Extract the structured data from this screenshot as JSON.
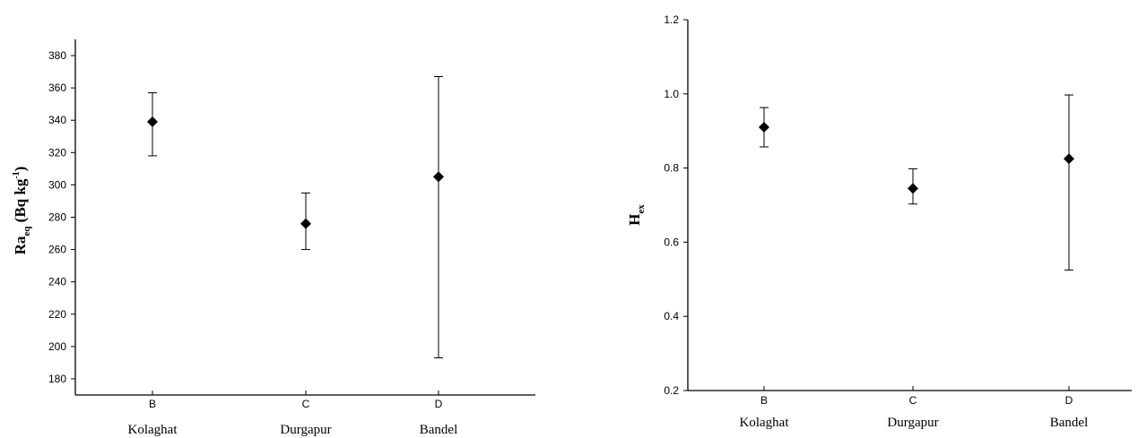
{
  "chart_data": [
    {
      "type": "scatter",
      "ylabel": {
        "main": "Ra",
        "sub": "eq",
        "unit_open": " (Bq kg",
        "sup": "-1",
        "unit_close": ")"
      },
      "ylim": [
        170,
        390
      ],
      "yticks": [
        180,
        200,
        220,
        240,
        260,
        280,
        300,
        320,
        340,
        360,
        380
      ],
      "tick_decimals": 0,
      "categories": [
        {
          "code": "B",
          "name": "Kolaghat"
        },
        {
          "code": "C",
          "name": "Durgapur"
        },
        {
          "code": "D",
          "name": "Bandel"
        }
      ],
      "values": [
        339,
        276,
        305
      ],
      "err_low": [
        318,
        260,
        193
      ],
      "err_high": [
        357,
        295,
        367
      ],
      "marker": "diamond",
      "grid": false
    },
    {
      "type": "scatter",
      "ylabel": {
        "main": "H",
        "sub": "ex",
        "unit_open": "",
        "sup": "",
        "unit_close": ""
      },
      "ylim": [
        0.2,
        1.2
      ],
      "yticks": [
        0.2,
        0.4,
        0.6,
        0.8,
        1.0,
        1.2
      ],
      "tick_decimals": 1,
      "categories": [
        {
          "code": "B",
          "name": "Kolaghat"
        },
        {
          "code": "C",
          "name": "Durgapur"
        },
        {
          "code": "D",
          "name": "Bandel"
        }
      ],
      "values": [
        0.91,
        0.745,
        0.825
      ],
      "err_low": [
        0.857,
        0.703,
        0.525
      ],
      "err_high": [
        0.963,
        0.798,
        0.997
      ],
      "marker": "diamond",
      "grid": false
    }
  ]
}
